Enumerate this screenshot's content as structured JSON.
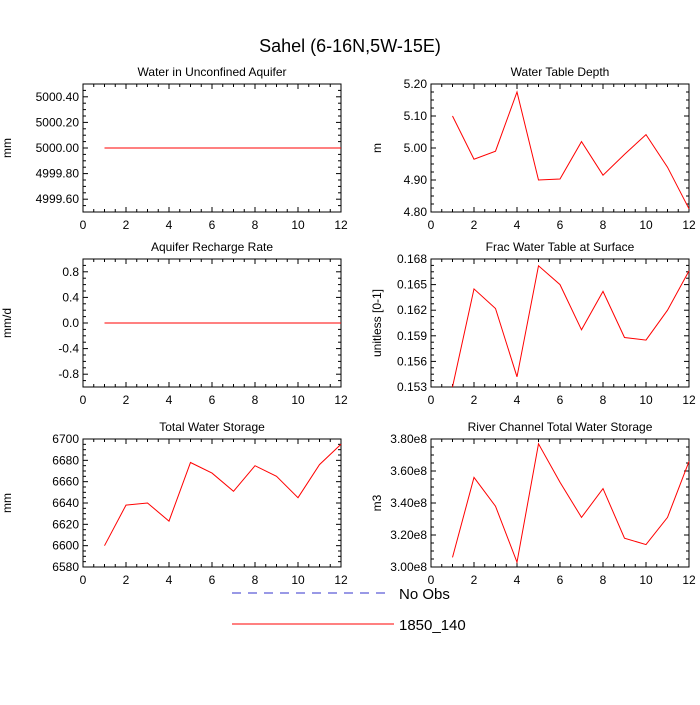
{
  "title": "Sahel (6-16N,5W-15E)",
  "colors": {
    "model": "#ff0000",
    "obs": "#3333cc",
    "axis": "#000000"
  },
  "legend": {
    "placement": "bottom-center",
    "items": [
      {
        "label": "No Obs",
        "style": "dashed",
        "color": "#3333cc"
      },
      {
        "label": "1850_140",
        "style": "solid",
        "color": "#ff0000"
      }
    ]
  },
  "chart_data": [
    {
      "type": "line",
      "title": "Water in Unconfined Aquifer",
      "ylabel": "mm",
      "xlim": [
        0,
        12
      ],
      "ylim": [
        4999.5,
        5000.5
      ],
      "xticks": [
        "0",
        "2",
        "4",
        "6",
        "8",
        "10",
        "12"
      ],
      "yticks": [
        {
          "v": 4999.6,
          "label": "4999.60"
        },
        {
          "v": 4999.8,
          "label": "4999.80"
        },
        {
          "v": 5000.0,
          "label": "5000.00"
        },
        {
          "v": 5000.2,
          "label": "5000.20"
        },
        {
          "v": 5000.4,
          "label": "5000.40"
        }
      ],
      "x": [
        1,
        2,
        3,
        4,
        5,
        6,
        7,
        8,
        9,
        10,
        11,
        12
      ],
      "series": [
        {
          "name": "1850_140",
          "values": [
            5000,
            5000,
            5000,
            5000,
            5000,
            5000,
            5000,
            5000,
            5000,
            5000,
            5000,
            5000
          ]
        }
      ]
    },
    {
      "type": "line",
      "title": "Water Table Depth",
      "ylabel": "m",
      "xlim": [
        0,
        12
      ],
      "ylim": [
        4.8,
        5.2
      ],
      "xticks": [
        "0",
        "2",
        "4",
        "6",
        "8",
        "10",
        "12"
      ],
      "yticks": [
        {
          "v": 4.8,
          "label": "4.80"
        },
        {
          "v": 4.9,
          "label": "4.90"
        },
        {
          "v": 5.0,
          "label": "5.00"
        },
        {
          "v": 5.1,
          "label": "5.10"
        },
        {
          "v": 5.2,
          "label": "5.20"
        }
      ],
      "x": [
        1,
        2,
        3,
        4,
        5,
        6,
        7,
        8,
        9,
        10,
        11,
        12
      ],
      "series": [
        {
          "name": "1850_140",
          "values": [
            5.1,
            4.965,
            4.99,
            5.175,
            4.9,
            4.903,
            5.02,
            4.915,
            4.98,
            5.042,
            4.94,
            4.81
          ]
        }
      ]
    },
    {
      "type": "line",
      "title": "Aquifer Recharge Rate",
      "ylabel": "mm/d",
      "xlim": [
        0,
        12
      ],
      "ylim": [
        -1.0,
        1.0
      ],
      "xticks": [
        "0",
        "2",
        "4",
        "6",
        "8",
        "10",
        "12"
      ],
      "yticks": [
        {
          "v": -0.8,
          "label": "-0.8"
        },
        {
          "v": -0.4,
          "label": "-0.4"
        },
        {
          "v": 0.0,
          "label": "0.0"
        },
        {
          "v": 0.4,
          "label": "0.4"
        },
        {
          "v": 0.8,
          "label": "0.8"
        }
      ],
      "x": [
        1,
        2,
        3,
        4,
        5,
        6,
        7,
        8,
        9,
        10,
        11,
        12
      ],
      "series": [
        {
          "name": "1850_140",
          "values": [
            0,
            0,
            0,
            0,
            0,
            0,
            0,
            0,
            0,
            0,
            0,
            0
          ]
        }
      ]
    },
    {
      "type": "line",
      "title": "Frac Water Table at Surface",
      "ylabel": "unitless [0-1]",
      "xlim": [
        0,
        12
      ],
      "ylim": [
        0.153,
        0.168
      ],
      "xticks": [
        "0",
        "2",
        "4",
        "6",
        "8",
        "10",
        "12"
      ],
      "yticks": [
        {
          "v": 0.153,
          "label": "0.153"
        },
        {
          "v": 0.156,
          "label": "0.156"
        },
        {
          "v": 0.159,
          "label": "0.159"
        },
        {
          "v": 0.162,
          "label": "0.162"
        },
        {
          "v": 0.165,
          "label": "0.165"
        },
        {
          "v": 0.168,
          "label": "0.168"
        }
      ],
      "x": [
        1,
        2,
        3,
        4,
        5,
        6,
        7,
        8,
        9,
        10,
        11,
        12
      ],
      "series": [
        {
          "name": "1850_140",
          "values": [
            0.153,
            0.1645,
            0.1622,
            0.1542,
            0.1672,
            0.165,
            0.1597,
            0.1642,
            0.1588,
            0.1585,
            0.162,
            0.1666
          ]
        }
      ]
    },
    {
      "type": "line",
      "title": "Total Water Storage",
      "ylabel": "mm",
      "xlim": [
        0,
        12
      ],
      "ylim": [
        6580,
        6700
      ],
      "xticks": [
        "0",
        "2",
        "4",
        "6",
        "8",
        "10",
        "12"
      ],
      "yticks": [
        {
          "v": 6580,
          "label": "6580"
        },
        {
          "v": 6600,
          "label": "6600"
        },
        {
          "v": 6620,
          "label": "6620"
        },
        {
          "v": 6640,
          "label": "6640"
        },
        {
          "v": 6660,
          "label": "6660"
        },
        {
          "v": 6680,
          "label": "6680"
        },
        {
          "v": 6700,
          "label": "6700"
        }
      ],
      "x": [
        1,
        2,
        3,
        4,
        5,
        6,
        7,
        8,
        9,
        10,
        11,
        12
      ],
      "series": [
        {
          "name": "1850_140",
          "values": [
            6600,
            6638,
            6640,
            6623,
            6678,
            6668,
            6651,
            6675,
            6665,
            6645,
            6676,
            6695
          ]
        }
      ]
    },
    {
      "type": "line",
      "title": "River Channel Total Water Storage",
      "ylabel": "m3",
      "xlim": [
        0,
        12
      ],
      "ylim": [
        300000000,
        380000000
      ],
      "xticks": [
        "0",
        "2",
        "4",
        "6",
        "8",
        "10",
        "12"
      ],
      "yticks": [
        {
          "v": 300000000,
          "label": "3.00e8"
        },
        {
          "v": 320000000,
          "label": "3.20e8"
        },
        {
          "v": 340000000,
          "label": "3.40e8"
        },
        {
          "v": 360000000,
          "label": "3.60e8"
        },
        {
          "v": 380000000,
          "label": "3.80e8"
        }
      ],
      "x": [
        1,
        2,
        3,
        4,
        5,
        6,
        7,
        8,
        9,
        10,
        11,
        12
      ],
      "series": [
        {
          "name": "1850_140",
          "values": [
            306000000,
            356000000,
            338000000,
            303000000,
            377000000,
            353000000,
            331000000,
            349000000,
            318000000,
            314000000,
            331000000,
            366000000
          ]
        }
      ]
    }
  ]
}
